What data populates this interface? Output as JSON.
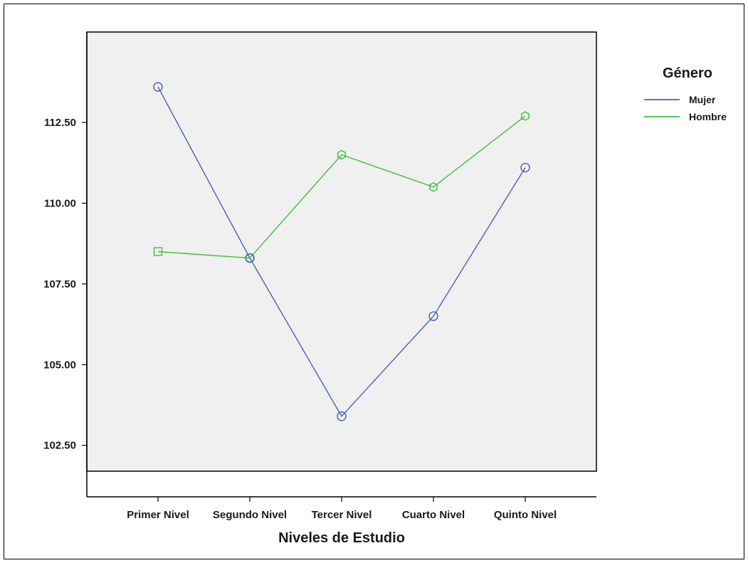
{
  "chart_data": {
    "type": "line",
    "title": "",
    "xlabel": "Niveles de Estudio",
    "ylabel": "",
    "categories": [
      "Primer Nivel",
      "Segundo Nivel",
      "Tercer Nivel",
      "Cuarto Nivel",
      "Quinto Nivel"
    ],
    "yticks": [
      "102.50",
      "105.00",
      "107.50",
      "110.00",
      "112.50"
    ],
    "ylim": [
      101.7,
      115.3
    ],
    "grid": false,
    "legend": {
      "title": "Género",
      "placement": "right"
    },
    "plot_background": "#f0f0f0",
    "series": [
      {
        "name": "Mujer",
        "color": "#4a5fbf",
        "marker": "circle",
        "values": [
          113.6,
          108.3,
          103.4,
          106.5,
          111.1
        ]
      },
      {
        "name": "Hombre",
        "color": "#3dbf3d",
        "marker": "square",
        "values": [
          108.5,
          108.3,
          111.5,
          110.5,
          112.7
        ]
      }
    ]
  }
}
